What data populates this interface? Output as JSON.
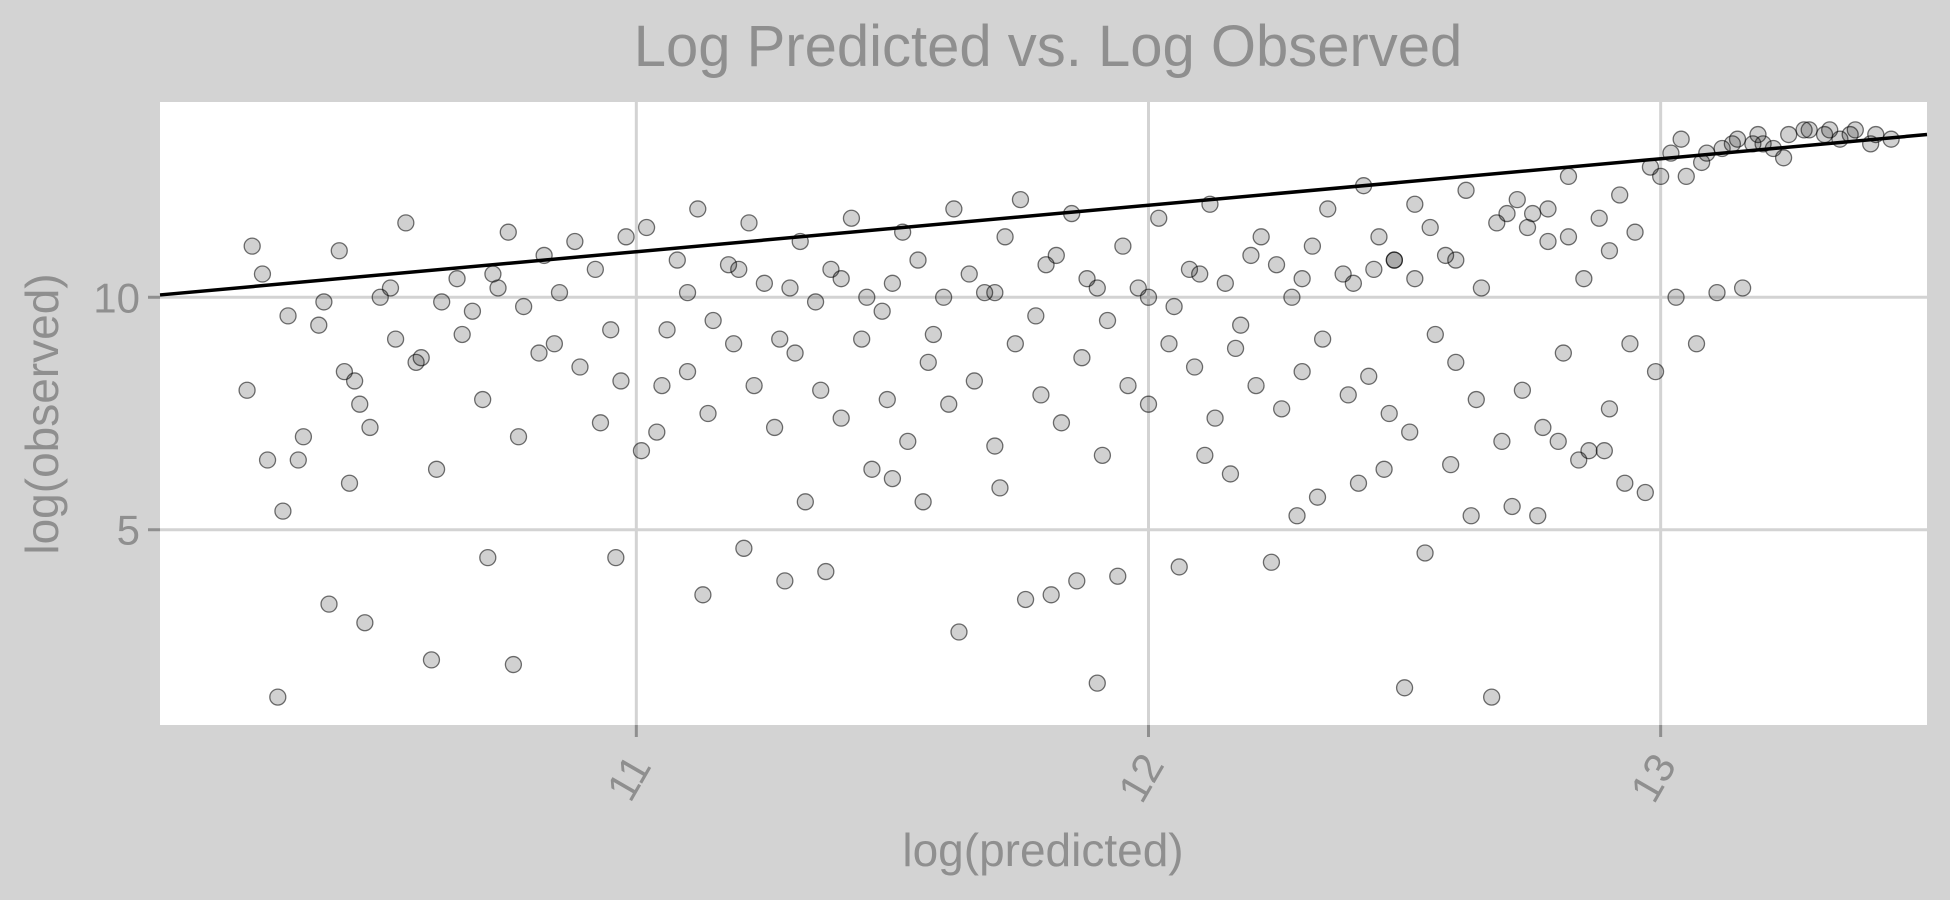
{
  "chart_data": {
    "type": "scatter",
    "title": "Log Predicted vs. Log Observed",
    "xlabel": "log(predicted)",
    "ylabel": "log(observed)",
    "xlim": [
      10.07,
      13.52
    ],
    "ylim": [
      0.8,
      14.2
    ],
    "x_ticks": [
      11,
      12,
      13
    ],
    "y_ticks": [
      5,
      10
    ],
    "grid": true,
    "reference_line": {
      "x": [
        10.07,
        13.52
      ],
      "y": [
        10.05,
        13.5
      ]
    },
    "points": {
      "x": [
        10.25,
        10.28,
        10.32,
        10.35,
        10.38,
        10.42,
        10.45,
        10.48,
        10.52,
        10.55,
        10.58,
        10.62,
        10.65,
        10.68,
        10.72,
        10.75,
        10.78,
        10.82,
        10.85,
        10.88,
        10.92,
        10.95,
        10.98,
        11.02,
        11.05,
        11.08,
        11.12,
        11.15,
        11.18,
        11.22,
        11.25,
        11.28,
        11.32,
        11.35,
        11.38,
        11.42,
        11.45,
        11.48,
        11.52,
        11.55,
        11.58,
        11.62,
        11.65,
        11.68,
        11.72,
        11.75,
        11.78,
        11.82,
        11.85,
        11.88,
        11.92,
        11.95,
        11.98,
        12.02,
        12.05,
        12.08,
        12.12,
        12.15,
        12.18,
        12.22,
        12.25,
        12.28,
        12.32,
        12.35,
        12.38,
        12.42,
        12.45,
        12.48,
        12.52,
        12.55,
        12.58,
        12.62,
        12.65,
        12.68,
        12.72,
        12.75,
        12.78,
        12.82,
        12.85,
        12.88,
        12.92,
        12.95,
        12.98,
        13.02,
        13.05,
        13.08,
        13.12,
        13.15,
        13.18,
        13.22,
        13.25,
        13.28,
        13.32,
        13.35,
        13.38,
        13.42,
        13.45,
        10.24,
        10.27,
        10.31,
        10.34,
        10.39,
        10.43,
        10.46,
        10.5,
        10.53,
        10.57,
        10.61,
        10.66,
        10.7,
        10.73,
        10.77,
        10.81,
        10.84,
        10.89,
        10.93,
        10.97,
        11.01,
        11.06,
        11.1,
        11.14,
        11.19,
        11.23,
        11.27,
        11.31,
        11.36,
        11.4,
        11.44,
        11.49,
        11.53,
        11.57,
        11.61,
        11.66,
        11.7,
        11.74,
        11.79,
        11.83,
        11.87,
        11.91,
        11.96,
        12.0,
        12.04,
        12.09,
        12.13,
        12.17,
        12.21,
        12.26,
        12.3,
        12.34,
        12.39,
        12.43,
        12.47,
        12.51,
        12.56,
        12.6,
        12.64,
        12.69,
        12.73,
        12.77,
        12.81,
        12.86,
        12.9,
        12.94,
        12.99,
        13.03,
        13.07,
        13.11,
        13.16,
        13.2,
        13.24,
        13.29,
        13.33,
        13.37,
        13.41,
        10.3,
        10.4,
        10.44,
        10.47,
        10.6,
        10.71,
        10.76,
        10.96,
        11.04,
        11.13,
        11.21,
        11.29,
        11.33,
        11.37,
        11.46,
        11.5,
        11.56,
        11.63,
        11.71,
        11.76,
        11.81,
        11.86,
        11.9,
        11.94,
        12.06,
        12.11,
        12.16,
        12.24,
        12.29,
        12.33,
        12.41,
        12.46,
        12.5,
        12.54,
        12.59,
        12.63,
        12.67,
        12.71,
        12.76,
        12.8,
        12.84,
        12.89,
        12.93,
        12.97,
        13.04,
        13.09,
        13.14,
        13.19,
        11.2,
        11.3,
        11.4,
        11.6,
        11.7,
        11.8,
        12.1,
        12.2,
        12.4,
        12.44,
        12.48,
        12.52,
        12.7,
        12.74,
        12.78,
        12.82,
        11.1,
        11.5,
        11.9,
        12.0,
        12.3,
        12.6,
        12.9,
        13.0
      ],
      "y": [
        11.1,
        6.5,
        9.6,
        7.0,
        9.4,
        11.0,
        8.2,
        7.2,
        10.2,
        11.6,
        8.7,
        9.9,
        10.4,
        9.7,
        10.5,
        11.4,
        9.8,
        10.9,
        10.1,
        11.2,
        10.6,
        9.3,
        11.3,
        11.5,
        8.1,
        10.8,
        11.9,
        9.5,
        10.7,
        11.6,
        10.3,
        9.1,
        11.2,
        9.9,
        10.6,
        11.7,
        10.0,
        9.7,
        11.4,
        10.8,
        9.2,
        11.9,
        10.5,
        10.1,
        11.3,
        12.1,
        9.6,
        10.9,
        11.8,
        10.4,
        9.5,
        11.1,
        10.2,
        11.7,
        9.8,
        10.6,
        12.0,
        10.3,
        9.4,
        11.3,
        10.7,
        10.0,
        11.1,
        11.9,
        10.5,
        12.4,
        11.3,
        10.8,
        12.0,
        11.5,
        10.9,
        12.3,
        10.2,
        11.6,
        12.1,
        11.8,
        11.2,
        12.6,
        10.4,
        11.7,
        12.2,
        11.4,
        12.8,
        13.1,
        12.6,
        12.9,
        13.2,
        13.4,
        13.3,
        13.2,
        13.5,
        13.6,
        13.5,
        13.4,
        13.6,
        13.5,
        13.4,
        8.0,
        10.5,
        5.4,
        6.5,
        9.9,
        8.4,
        7.7,
        10.0,
        9.1,
        8.6,
        6.3,
        9.2,
        7.8,
        10.2,
        7.0,
        8.8,
        9.0,
        8.5,
        7.3,
        8.2,
        6.7,
        9.3,
        8.4,
        7.5,
        9.0,
        8.1,
        7.2,
        8.8,
        8.0,
        7.4,
        9.1,
        7.8,
        6.9,
        8.6,
        7.7,
        8.2,
        6.8,
        9.0,
        7.9,
        7.3,
        8.7,
        6.6,
        8.1,
        7.7,
        9.0,
        8.5,
        7.4,
        8.9,
        8.1,
        7.6,
        8.4,
        9.1,
        7.9,
        8.3,
        7.5,
        7.1,
        9.2,
        8.6,
        7.8,
        6.9,
        8.0,
        7.2,
        8.8,
        6.7,
        7.6,
        9.0,
        8.4,
        10.0,
        9.0,
        10.1,
        10.2,
        13.3,
        13.0,
        13.6,
        13.6,
        13.5,
        13.3,
        1.4,
        3.4,
        6.0,
        3.0,
        2.2,
        4.4,
        2.1,
        4.4,
        7.1,
        3.6,
        4.6,
        3.9,
        5.6,
        4.1,
        6.3,
        6.1,
        5.6,
        2.8,
        5.9,
        3.5,
        3.6,
        3.9,
        1.7,
        4.0,
        4.2,
        6.6,
        6.2,
        4.3,
        5.3,
        5.7,
        6.0,
        6.3,
        1.6,
        4.5,
        6.4,
        5.3,
        1.4,
        5.5,
        5.3,
        6.9,
        6.5,
        6.7,
        6.0,
        5.8,
        13.4,
        13.1,
        13.3,
        13.5,
        10.6,
        10.2,
        10.4,
        10.0,
        10.1,
        10.7,
        10.5,
        10.9,
        10.3,
        10.6,
        10.8,
        10.4,
        11.8,
        11.5,
        11.9,
        11.3,
        10.1,
        10.3,
        10.2,
        10.0,
        10.4,
        10.8,
        11.0,
        12.6
      ]
    }
  }
}
